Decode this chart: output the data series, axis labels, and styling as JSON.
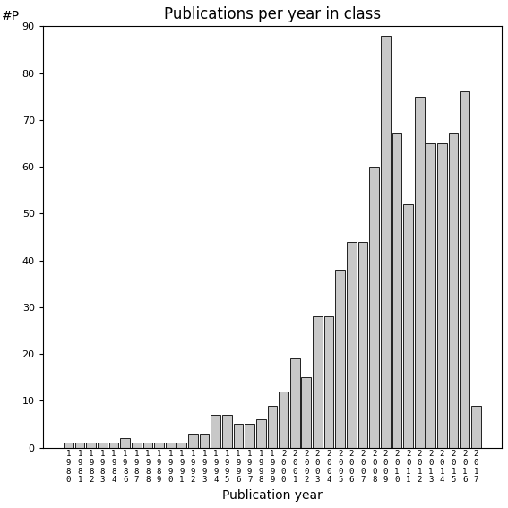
{
  "title": "Publications per year in class",
  "xlabel": "Publication year",
  "ylabel": "#P",
  "ylim": [
    0,
    90
  ],
  "yticks": [
    0,
    10,
    20,
    30,
    40,
    50,
    60,
    70,
    80,
    90
  ],
  "bar_color": "#c8c8c8",
  "bar_edge_color": "#000000",
  "bar_linewidth": 0.6,
  "categories": [
    "1980",
    "1981",
    "1982",
    "1983",
    "1984",
    "1986",
    "1987",
    "1988",
    "1989",
    "1990",
    "1991",
    "1992",
    "1993",
    "1994",
    "1995",
    "1996",
    "1997",
    "1998",
    "1999",
    "2000",
    "2001",
    "2002",
    "2003",
    "2004",
    "2005",
    "2006",
    "2007",
    "2008",
    "2009",
    "2010",
    "2011",
    "2012",
    "2013",
    "2014",
    "2015",
    "2016",
    "2017"
  ],
  "values": [
    1,
    1,
    1,
    1,
    1,
    2,
    1,
    1,
    1,
    1,
    1,
    3,
    3,
    7,
    7,
    5,
    5,
    6,
    9,
    12,
    19,
    15,
    28,
    28,
    38,
    44,
    44,
    60,
    88,
    67,
    52,
    75,
    65,
    65,
    67,
    76,
    9
  ],
  "background_color": "#ffffff",
  "title_fontsize": 12,
  "label_fontsize": 10,
  "tick_fontsize": 8,
  "figsize": [
    5.67,
    5.67
  ],
  "dpi": 100
}
